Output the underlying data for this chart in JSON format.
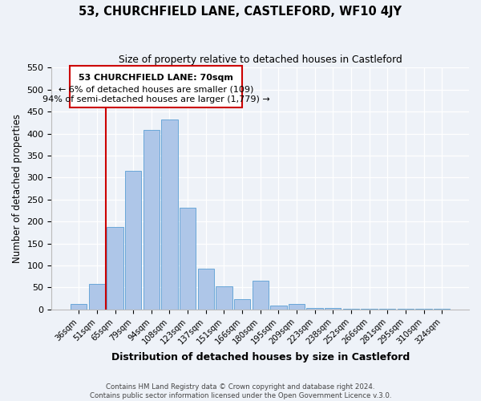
{
  "title": "53, CHURCHFIELD LANE, CASTLEFORD, WF10 4JY",
  "subtitle": "Size of property relative to detached houses in Castleford",
  "xlabel": "Distribution of detached houses by size in Castleford",
  "ylabel": "Number of detached properties",
  "footer_line1": "Contains HM Land Registry data © Crown copyright and database right 2024.",
  "footer_line2": "Contains public sector information licensed under the Open Government Licence v.3.0.",
  "bin_labels": [
    "36sqm",
    "51sqm",
    "65sqm",
    "79sqm",
    "94sqm",
    "108sqm",
    "123sqm",
    "137sqm",
    "151sqm",
    "166sqm",
    "180sqm",
    "195sqm",
    "209sqm",
    "223sqm",
    "238sqm",
    "252sqm",
    "266sqm",
    "281sqm",
    "295sqm",
    "310sqm",
    "324sqm"
  ],
  "bar_values": [
    13,
    58,
    188,
    316,
    408,
    432,
    232,
    92,
    52,
    24,
    65,
    8,
    12,
    4,
    4,
    2,
    1,
    1,
    1,
    1,
    2
  ],
  "bar_color": "#aec6e8",
  "bar_edge_color": "#5a9fd4",
  "ylim": [
    0,
    550
  ],
  "yticks": [
    0,
    50,
    100,
    150,
    200,
    250,
    300,
    350,
    400,
    450,
    500,
    550
  ],
  "property_line_color": "#cc0000",
  "annotation_title": "53 CHURCHFIELD LANE: 70sqm",
  "annotation_line1": "← 6% of detached houses are smaller (109)",
  "annotation_line2": "94% of semi-detached houses are larger (1,779) →",
  "annotation_box_color": "#cc0000",
  "bg_color": "#eef2f8"
}
